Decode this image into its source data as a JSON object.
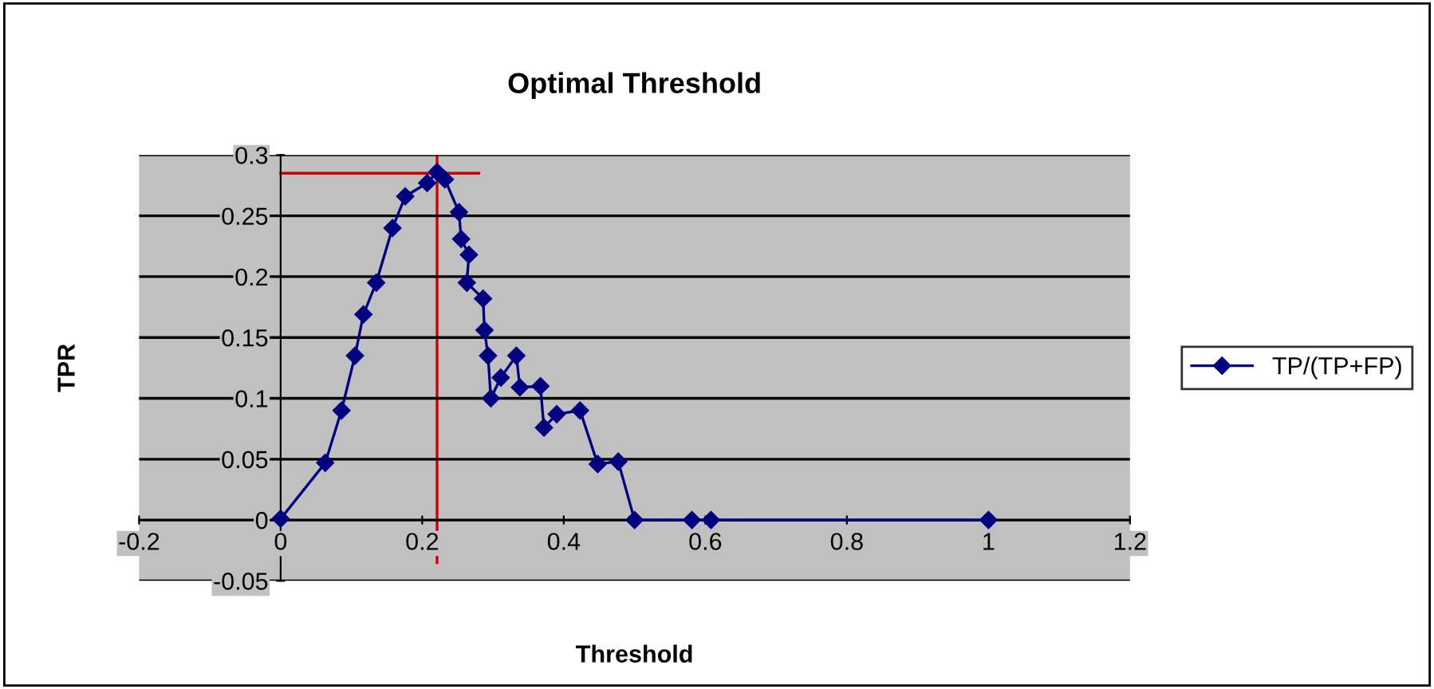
{
  "chart_data": {
    "type": "line",
    "title": "Optimal Threshold",
    "xlabel": "Threshold",
    "ylabel": "TPR",
    "series": [
      {
        "name": "TP/(TP+FP)",
        "color": "#000080",
        "marker": "diamond",
        "x": [
          0,
          0.063,
          0.086,
          0.105,
          0.117,
          0.135,
          0.158,
          0.176,
          0.207,
          0.221,
          0.232,
          0.252,
          0.255,
          0.266,
          0.263,
          0.286,
          0.288,
          0.293,
          0.297,
          0.311,
          0.333,
          0.338,
          0.367,
          0.372,
          0.39,
          0.423,
          0.448,
          0.477,
          0.5,
          0.581,
          0.608,
          1
        ],
        "values": [
          0.001,
          0.047,
          0.09,
          0.135,
          0.169,
          0.195,
          0.24,
          0.266,
          0.277,
          0.286,
          0.28,
          0.253,
          0.231,
          0.218,
          0.195,
          0.182,
          0.156,
          0.135,
          0.1,
          0.117,
          0.135,
          0.109,
          0.11,
          0.076,
          0.087,
          0.09,
          0.046,
          0.048,
          0,
          0,
          0,
          0
        ]
      },
      {
        "type": "line",
        "color": "#cc0000",
        "marker": "none",
        "x": [
          0,
          0.28
        ],
        "values": [
          0.285,
          0.285
        ]
      },
      {
        "type": "line",
        "color": "#cc0000",
        "marker": "none",
        "x": [
          0.221,
          0.221
        ],
        "values": [
          -0.035,
          0.3
        ]
      }
    ],
    "xlim": [
      -0.2,
      1.2
    ],
    "xticks": [
      -0.2,
      0,
      0.2,
      0.4,
      0.6,
      0.8,
      1,
      1.2
    ],
    "ylim": [
      -0.05,
      0.3
    ],
    "yticks": [
      -0.05,
      0,
      0.05,
      0.1,
      0.15,
      0.2,
      0.25,
      0.3
    ],
    "grid": "y",
    "legend": "right"
  }
}
